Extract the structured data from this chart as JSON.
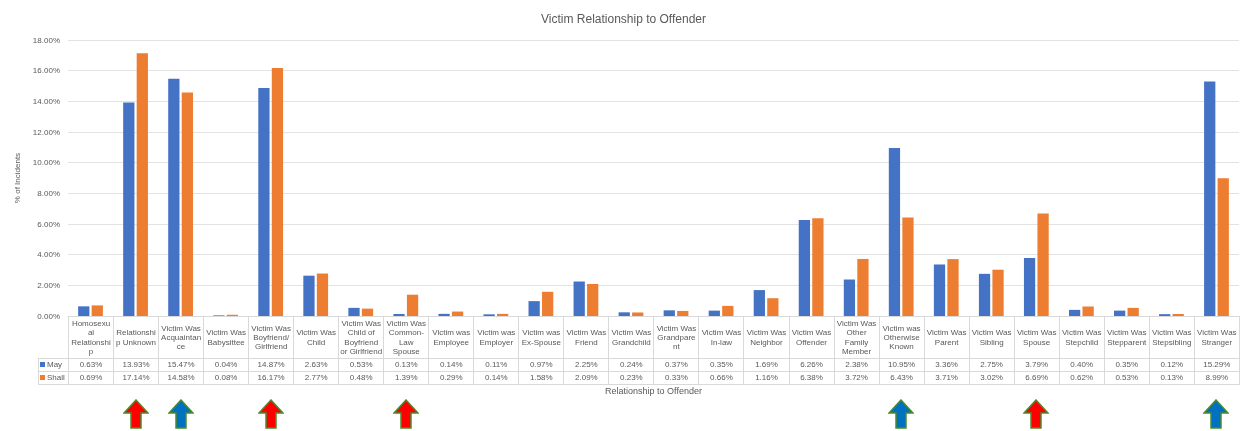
{
  "chart_data": {
    "type": "bar",
    "title": "Victim Relationship to Offender",
    "xlabel": "Relationship to Offender",
    "ylabel": "% of Incidents",
    "categories": [
      "Homosexual Relationship",
      "Relationship Unknown",
      "Victim Was Acquaintance",
      "Victim Was Babysittee",
      "Victim Was Boyfriend/Girlfriend",
      "Victim Was Child",
      "Victim Was Child of Boyfriend or Girlfriend",
      "Victim Was Common-Law Spouse",
      "Victim was Employee",
      "Victim was Employer",
      "Victim was Ex-Spouse",
      "Victim Was Friend",
      "Victim Was Grandchild",
      "Victim Was Grandparent",
      "Victim Was In-law",
      "Victim Was Neighbor",
      "Victim Was Offender",
      "Victim Was Other Family Member",
      "Victim was Otherwise Known",
      "Victim Was Parent",
      "Victim Was Sibling",
      "Victim Was Spouse",
      "Victim Was Stepchild",
      "Victim Was Stepparent",
      "Victim Was Stepsibling",
      "Victim Was Stranger"
    ],
    "series": [
      {
        "name": "May",
        "color": "#4472c4",
        "values": [
          0.63,
          13.93,
          15.47,
          0.04,
          14.87,
          2.63,
          0.53,
          0.13,
          0.14,
          0.11,
          0.97,
          2.25,
          0.24,
          0.37,
          0.35,
          1.69,
          6.26,
          2.38,
          10.95,
          3.36,
          2.75,
          3.79,
          0.4,
          0.35,
          0.12,
          15.29
        ],
        "value_labels": [
          "0.63%",
          "13.93%",
          "15.47%",
          "0.04%",
          "14.87%",
          "2.63%",
          "0.53%",
          "0.13%",
          "0.14%",
          "0.11%",
          "0.97%",
          "2.25%",
          "0.24%",
          "0.37%",
          "0.35%",
          "1.69%",
          "6.26%",
          "2.38%",
          "10.95%",
          "3.36%",
          "2.75%",
          "3.79%",
          "0.40%",
          "0.35%",
          "0.12%",
          "15.29%"
        ]
      },
      {
        "name": "Shall",
        "color": "#ed7d31",
        "values": [
          0.69,
          17.14,
          14.58,
          0.08,
          16.17,
          2.77,
          0.48,
          1.39,
          0.29,
          0.14,
          1.58,
          2.09,
          0.23,
          0.33,
          0.66,
          1.16,
          6.38,
          3.72,
          6.43,
          3.71,
          3.02,
          6.69,
          0.62,
          0.53,
          0.13,
          8.99
        ],
        "value_labels": [
          "0.69%",
          "17.14%",
          "14.58%",
          "0.08%",
          "16.17%",
          "2.77%",
          "0.48%",
          "1.39%",
          "0.29%",
          "0.14%",
          "1.58%",
          "2.09%",
          "0.23%",
          "0.33%",
          "0.66%",
          "1.16%",
          "6.38%",
          "3.72%",
          "6.43%",
          "3.71%",
          "3.02%",
          "6.69%",
          "0.62%",
          "0.53%",
          "0.13%",
          "8.99%"
        ]
      }
    ],
    "ylim": [
      0,
      18
    ],
    "yticks": [
      {
        "value": 0,
        "label": "0.00%"
      },
      {
        "value": 2,
        "label": "2.00%"
      },
      {
        "value": 4,
        "label": "4.00%"
      },
      {
        "value": 6,
        "label": "6.00%"
      },
      {
        "value": 8,
        "label": "8.00%"
      },
      {
        "value": 10,
        "label": "10.00%"
      },
      {
        "value": 12,
        "label": "12.00%"
      },
      {
        "value": 14,
        "label": "14.00%"
      },
      {
        "value": 16,
        "label": "16.00%"
      },
      {
        "value": 18,
        "label": "18.00%"
      }
    ],
    "grid": "y",
    "legend": "bottom left"
  }
}
